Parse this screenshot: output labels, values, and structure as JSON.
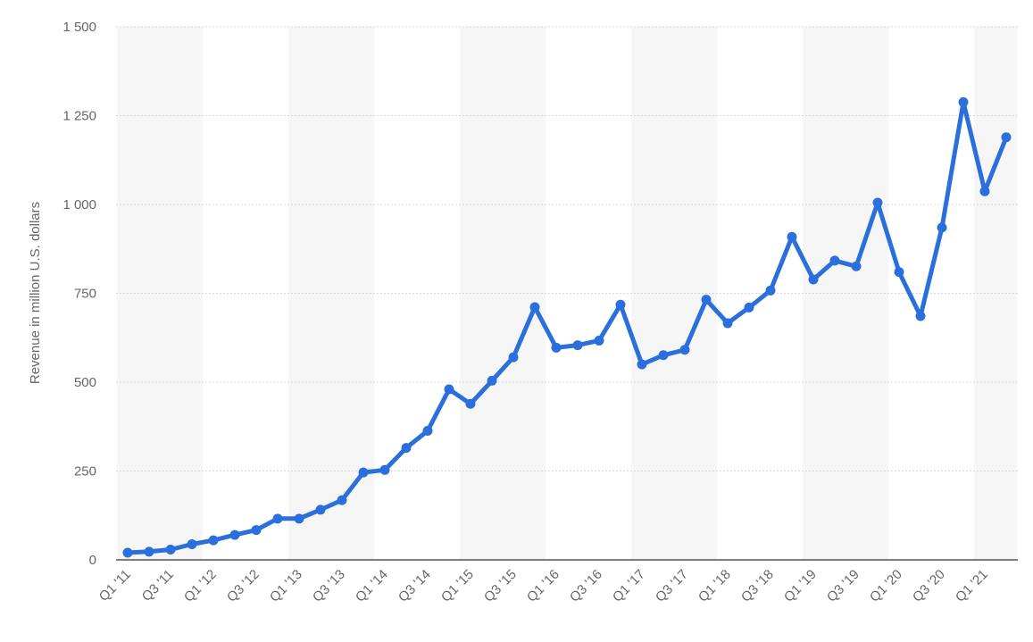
{
  "chart_data": {
    "type": "line",
    "title": "",
    "xlabel": "",
    "ylabel": "Revenue in million U.S. dollars",
    "ylim": [
      0,
      1500
    ],
    "yticks": [
      0,
      250,
      500,
      750,
      1000,
      1250,
      1500
    ],
    "ytick_labels": [
      "0",
      "250",
      "500",
      "750",
      "1 000",
      "1 250",
      "1 500"
    ],
    "grid": true,
    "legend": "none",
    "line_color": "#2a6fdb",
    "categories": [
      "Q1 '11",
      "Q2 '11",
      "Q3 '11",
      "Q4 '11",
      "Q1 '12",
      "Q2 '12",
      "Q3 '12",
      "Q4 '12",
      "Q1 '13",
      "Q2 '13",
      "Q3 '13",
      "Q4 '13",
      "Q1 '14",
      "Q2 '14",
      "Q3 '14",
      "Q4 '14",
      "Q1 '15",
      "Q2 '15",
      "Q3 '15",
      "Q4 '15",
      "Q1 '16",
      "Q2 '16",
      "Q3 '16",
      "Q4 '16",
      "Q1 '17",
      "Q2 '17",
      "Q3 '17",
      "Q4 '17",
      "Q1 '18",
      "Q2 '18",
      "Q3 '18",
      "Q4 '18",
      "Q1 '19",
      "Q2 '19",
      "Q3 '19",
      "Q4 '19",
      "Q1 '20",
      "Q2 '20",
      "Q3 '20",
      "Q4 '20",
      "Q1 '21",
      "Q2 '21"
    ],
    "visible_xtick_labels": [
      "Q1 '11",
      "Q3 '11",
      "Q1 '12",
      "Q3 '12",
      "Q1 '13",
      "Q3 '13",
      "Q1 '14",
      "Q3 '14",
      "Q1 '15",
      "Q3 '15",
      "Q1 '16",
      "Q3 '16",
      "Q1 '17",
      "Q3 '17",
      "Q1 '18",
      "Q3 '18",
      "Q1 '19",
      "Q3 '19",
      "Q1 '20",
      "Q3 '20",
      "Q1 '21"
    ],
    "values": [
      20,
      23,
      29,
      44,
      55,
      70,
      84,
      116,
      116,
      141,
      168,
      246,
      253,
      315,
      363,
      480,
      439,
      504,
      570,
      711,
      597,
      604,
      617,
      718,
      550,
      576,
      591,
      732,
      666,
      710,
      758,
      909,
      789,
      842,
      826,
      1005,
      810,
      686,
      935,
      1288,
      1037,
      1189
    ]
  }
}
